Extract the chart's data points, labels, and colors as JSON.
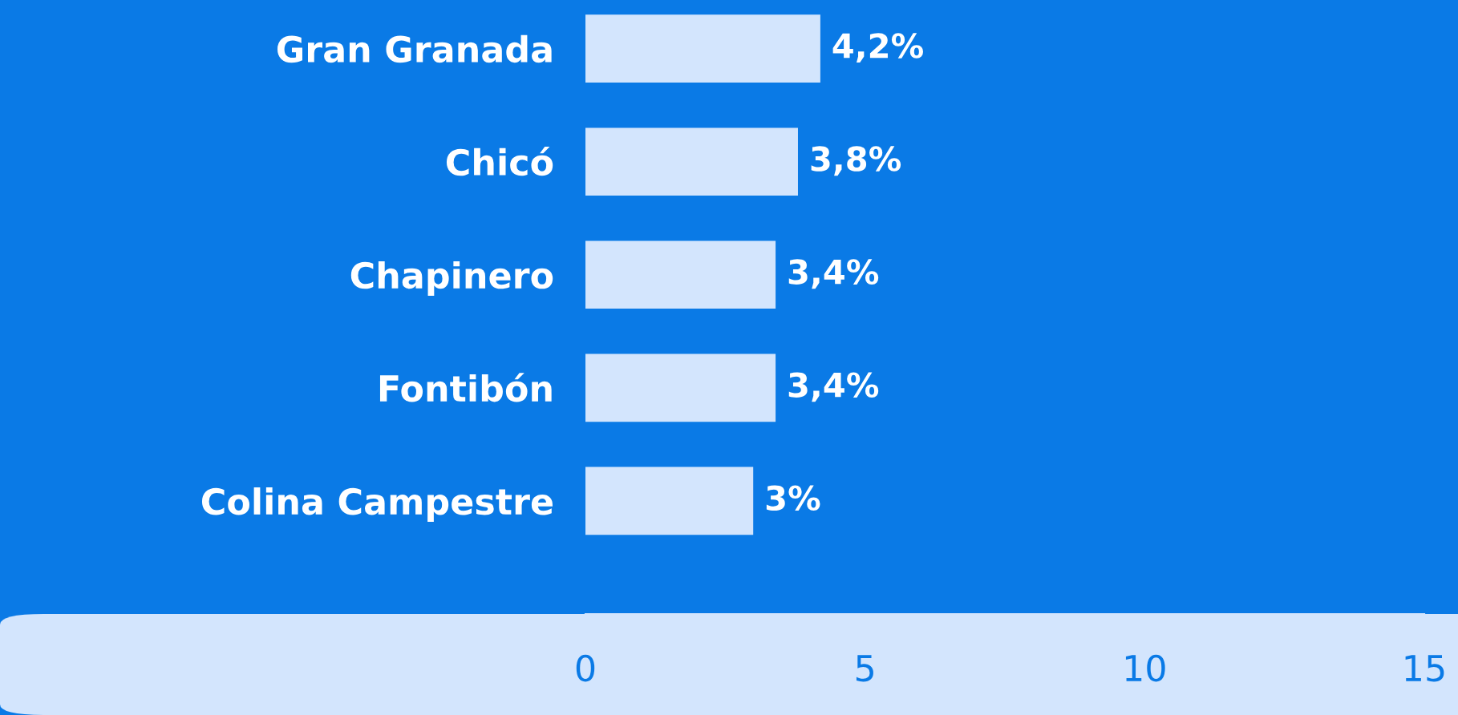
{
  "chart_data": {
    "type": "bar",
    "orientation": "horizontal",
    "categories": [
      "Gran Granada",
      "Chicó",
      "Chapinero",
      "Fontibón",
      "Colina Campestre"
    ],
    "values": [
      4.2,
      3.8,
      3.4,
      3.4,
      3
    ],
    "value_labels": [
      "4,2%",
      "3,8%",
      "3,4%",
      "3,4%",
      "3%"
    ],
    "color": "#d3e5fd",
    "xlim": [
      0,
      15
    ],
    "xticks": [
      0,
      5,
      10,
      15
    ],
    "grid": false,
    "legend": false
  }
}
